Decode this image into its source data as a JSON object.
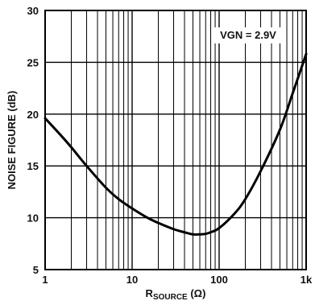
{
  "chart_data": {
    "type": "line",
    "title": "",
    "xlabel_main": "R",
    "xlabel_sub": "SOURCE",
    "xlabel_unit": " (Ω)",
    "ylabel": "NOISE FIGURE (dB)",
    "x_scale": "log",
    "xlim": [
      1,
      1000
    ],
    "ylim": [
      5,
      30
    ],
    "x_ticks": [
      1,
      10,
      100,
      1000
    ],
    "x_tick_labels": [
      "1",
      "10",
      "100",
      "1k"
    ],
    "y_ticks": [
      5,
      10,
      15,
      20,
      25,
      30
    ],
    "y_tick_labels": [
      "5",
      "10",
      "15",
      "20",
      "25",
      "30"
    ],
    "grid": true,
    "annotation": "VGN = 2.9V",
    "series": [
      {
        "x": [
          1,
          1.5,
          2,
          3,
          5,
          7,
          10,
          15,
          20,
          30,
          40,
          50,
          60,
          70,
          80,
          100,
          150,
          200,
          300,
          500,
          700,
          1000
        ],
        "y": [
          19.6,
          18.0,
          16.8,
          15.0,
          12.9,
          11.8,
          10.9,
          10.0,
          9.5,
          8.9,
          8.6,
          8.4,
          8.4,
          8.45,
          8.6,
          9.0,
          10.4,
          11.8,
          14.5,
          18.5,
          22.0,
          25.8
        ]
      }
    ]
  }
}
